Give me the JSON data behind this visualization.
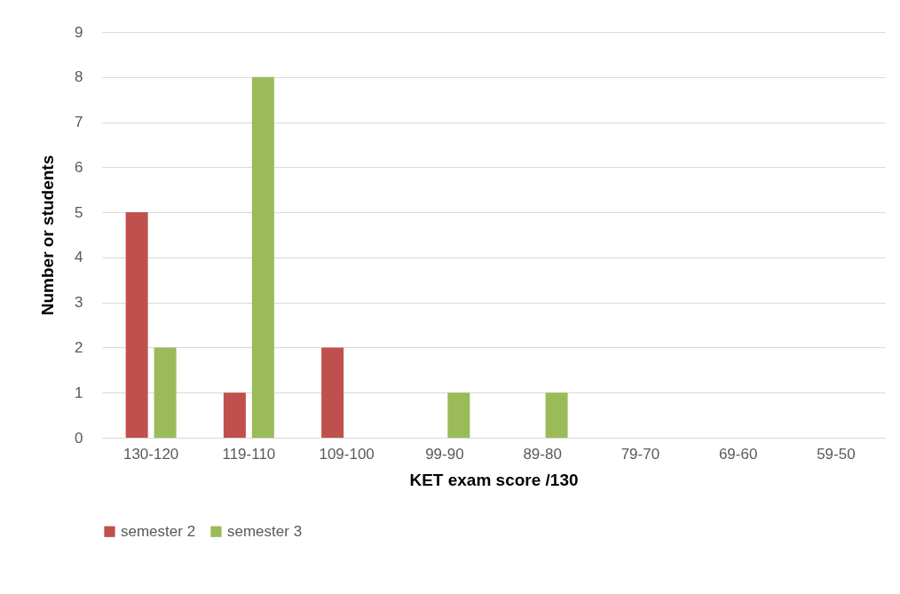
{
  "chart_data": {
    "type": "bar",
    "xlabel": "KET exam score /130",
    "ylabel": "Number or students",
    "categories": [
      "130-120",
      "119-110",
      "109-100",
      "99-90",
      "89-80",
      "79-70",
      "69-60",
      "59-50"
    ],
    "series": [
      {
        "name": "semester 2",
        "color": "#c0504d",
        "values": [
          5,
          1,
          2,
          0,
          0,
          0,
          0,
          0
        ]
      },
      {
        "name": "semester 3",
        "color": "#9bbb59",
        "values": [
          2,
          8,
          0,
          1,
          1,
          0,
          0,
          0
        ]
      }
    ],
    "ylim": [
      0,
      9
    ],
    "yticks": [
      0,
      1,
      2,
      3,
      4,
      5,
      6,
      7,
      8,
      9
    ],
    "grid": "y",
    "legend": "bottom"
  }
}
